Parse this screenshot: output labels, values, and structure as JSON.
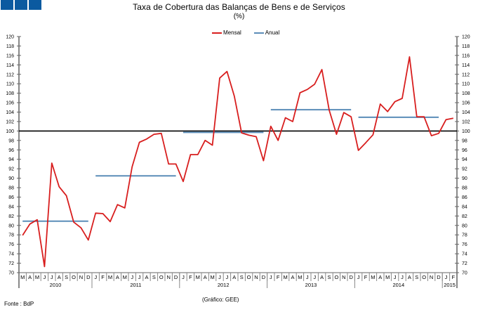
{
  "header": {
    "title": "Taxa de Cobertura das Balanças de Bens e de Serviços",
    "subtitle": "(%)",
    "logo_color": "#0b5aa0"
  },
  "legend": {
    "items": [
      {
        "label": "Mensal",
        "color": "#d81e1e"
      },
      {
        "label": "Anual",
        "color": "#5b8db8"
      }
    ]
  },
  "footer": {
    "source": "Fonte : BdP",
    "credit": "(Gráfico: GEE)"
  },
  "chart_data": {
    "type": "line",
    "title": "Taxa de Cobertura das Balanças de Bens e de Serviços",
    "subtitle": "(%)",
    "xlabel": "",
    "ylabel": "%",
    "ylim": [
      70,
      120
    ],
    "y_ticks": [
      70,
      72,
      74,
      76,
      78,
      80,
      82,
      84,
      86,
      88,
      90,
      92,
      94,
      96,
      98,
      100,
      102,
      104,
      106,
      108,
      110,
      112,
      114,
      116,
      118,
      120
    ],
    "y_axes": "left and right (mirrored)",
    "reference_line": {
      "value": 100,
      "color": "#000000"
    },
    "legend_position": "top-center",
    "grid": false,
    "years": [
      {
        "label": "2010",
        "months": 10
      },
      {
        "label": "2011",
        "months": 12
      },
      {
        "label": "2012",
        "months": 12
      },
      {
        "label": "2013",
        "months": 12
      },
      {
        "label": "2014",
        "months": 12
      },
      {
        "label": "2015",
        "months": 2
      }
    ],
    "x": [
      "M",
      "A",
      "M",
      "J",
      "J",
      "A",
      "S",
      "O",
      "N",
      "D",
      "J",
      "F",
      "M",
      "A",
      "M",
      "J",
      "J",
      "A",
      "S",
      "O",
      "N",
      "D",
      "J",
      "F",
      "M",
      "A",
      "M",
      "J",
      "J",
      "A",
      "S",
      "O",
      "N",
      "D",
      "J",
      "F",
      "M",
      "A",
      "M",
      "J",
      "J",
      "A",
      "S",
      "O",
      "N",
      "D",
      "J",
      "F",
      "M",
      "A",
      "M",
      "J",
      "J",
      "A",
      "S",
      "O",
      "N",
      "D",
      "J",
      "F"
    ],
    "series": [
      {
        "name": "Mensal",
        "color": "#d81e1e",
        "values": [
          77.9,
          80.3,
          81.2,
          71.3,
          93.2,
          88.2,
          86.3,
          80.7,
          79.5,
          76.9,
          82.6,
          82.5,
          80.8,
          84.4,
          83.7,
          92.4,
          97.6,
          98.3,
          99.3,
          99.5,
          93.0,
          93.0,
          89.3,
          95.0,
          95.0,
          98.0,
          97.0,
          111.2,
          112.6,
          107.4,
          99.6,
          99.1,
          98.8,
          93.7,
          101.0,
          98.0,
          102.8,
          102.0,
          108.1,
          108.8,
          109.9,
          113.0,
          104.4,
          99.3,
          103.9,
          103.0,
          95.9,
          97.5,
          99.2,
          105.7,
          104.1,
          106.2,
          106.9,
          115.7,
          103.0,
          103.0,
          99.0,
          99.5,
          102.4,
          102.7
        ]
      },
      {
        "name": "Anual",
        "color": "#5b8db8",
        "segments": [
          {
            "year": "2010",
            "value": 80.9
          },
          {
            "year": "2011",
            "value": 90.5
          },
          {
            "year": "2012",
            "value": 99.7
          },
          {
            "year": "2013",
            "value": 104.5
          },
          {
            "year": "2014",
            "value": 102.9
          }
        ]
      }
    ]
  }
}
